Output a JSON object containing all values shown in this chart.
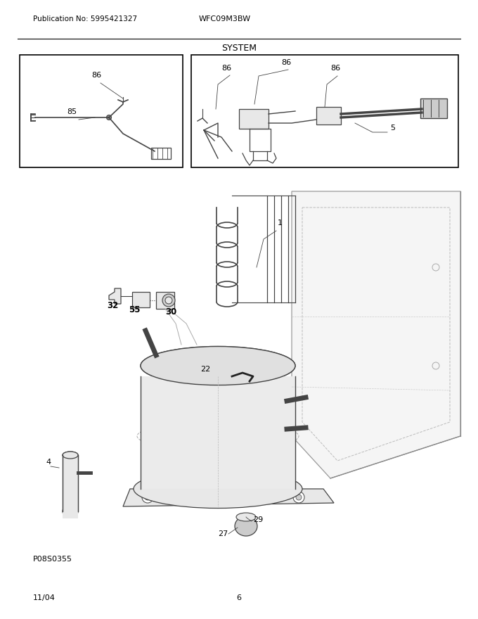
{
  "title": "SYSTEM",
  "pub_no": "Publication No: 5995421327",
  "model": "WFC09M3BW",
  "date": "11/04",
  "page": "6",
  "photo_code": "P08S0355",
  "bg_color": "#ffffff",
  "lc": "#444444",
  "tc": "#000000",
  "gray_light": "#e8e8e8",
  "gray_mid": "#cccccc",
  "gray_panel": "#f0f0f0"
}
